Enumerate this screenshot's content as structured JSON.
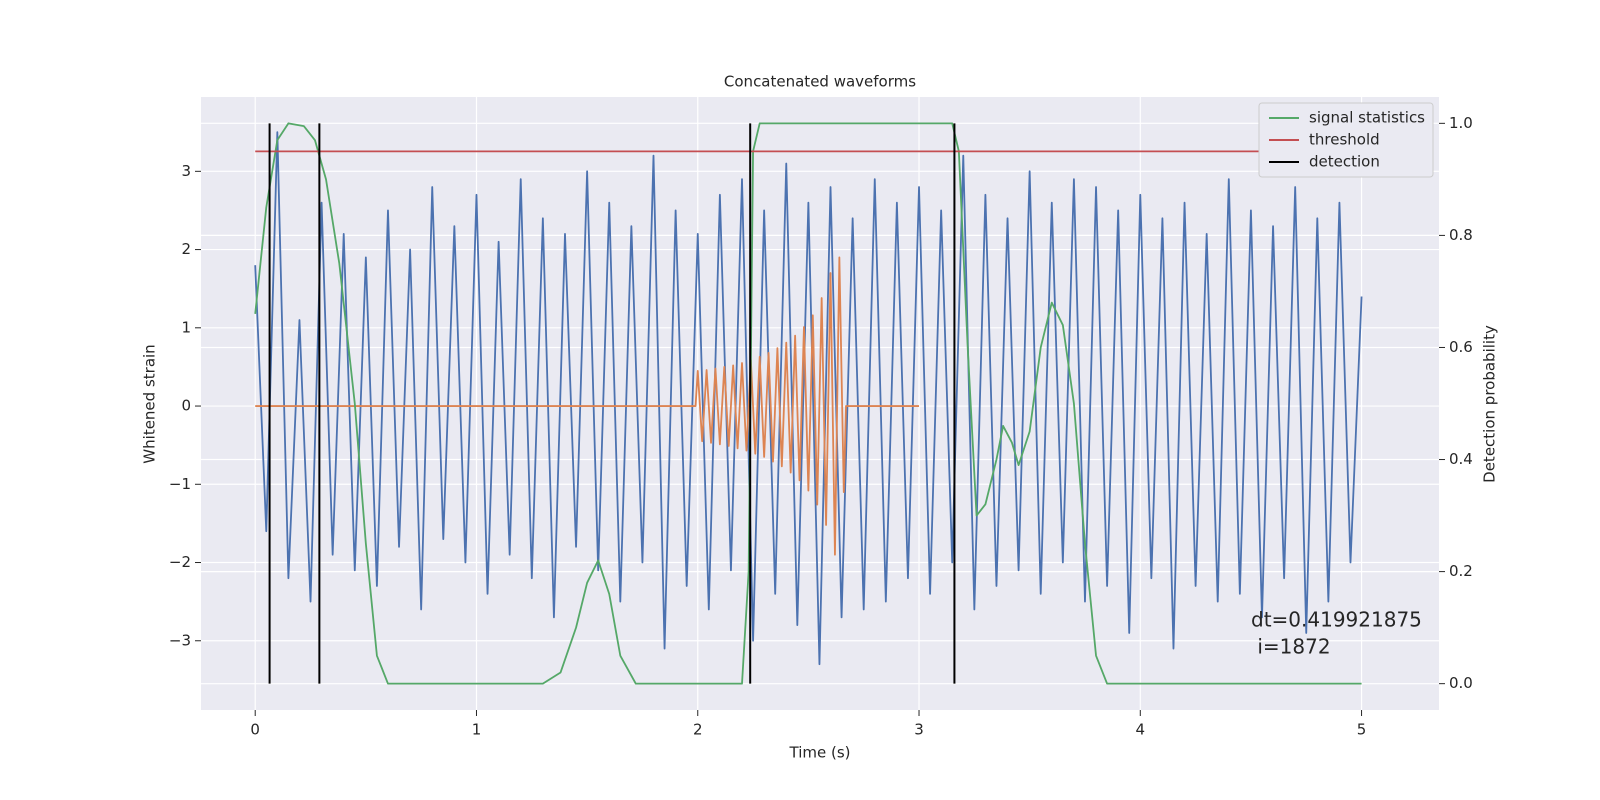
{
  "chart_data": {
    "type": "line",
    "title": "Concatenated waveforms",
    "xlabel": "Time (s)",
    "ylabel": "Whitened strain",
    "y2label": "Detection probability",
    "xlim": [
      -0.245,
      5.35
    ],
    "ylim": [
      -3.885,
      3.95
    ],
    "y2lim": [
      -0.047,
      1.047
    ],
    "xticks": [
      0,
      1,
      2,
      3,
      4,
      5
    ],
    "yticks": [
      {
        "value": -3,
        "label": "−3"
      },
      {
        "value": -2,
        "label": "−2"
      },
      {
        "value": -1,
        "label": "−1"
      },
      0,
      1,
      2,
      3
    ],
    "y2ticks": [
      {
        "value": 0,
        "label": "0.0"
      },
      0.2,
      0.4,
      0.6,
      0.8,
      {
        "value": 1,
        "label": "1.0"
      }
    ],
    "grid": true,
    "legend": "upper right",
    "background": "#eaeaf2",
    "annotation": [
      "dt=0.419921875",
      " i=1872"
    ],
    "series": [
      {
        "color": "#4c72b0",
        "x": [
          0,
          0.05,
          0.1,
          0.15,
          0.2,
          0.25,
          0.3,
          0.35,
          0.4,
          0.45,
          0.5,
          0.55,
          0.6,
          0.65,
          0.7,
          0.75,
          0.8,
          0.85,
          0.9,
          0.95,
          1,
          1.05,
          1.1,
          1.15,
          1.2,
          1.25,
          1.3,
          1.35,
          1.4,
          1.45,
          1.5,
          1.55,
          1.6,
          1.65,
          1.7,
          1.75,
          1.8,
          1.85,
          1.9,
          1.95,
          2,
          2.05,
          2.1,
          2.15,
          2.2,
          2.25,
          2.3,
          2.35,
          2.4,
          2.45,
          2.5,
          2.55,
          2.6,
          2.65,
          2.7,
          2.75,
          2.8,
          2.85,
          2.9,
          2.95,
          3,
          3.05,
          3.1,
          3.15,
          3.2,
          3.25,
          3.3,
          3.35,
          3.4,
          3.45,
          3.5,
          3.55,
          3.6,
          3.65,
          3.7,
          3.75,
          3.8,
          3.85,
          3.9,
          3.95,
          4,
          4.05,
          4.1,
          4.15,
          4.2,
          4.25,
          4.3,
          4.35,
          4.4,
          4.45,
          4.5,
          4.55,
          4.6,
          4.65,
          4.7,
          4.75,
          4.8,
          4.85,
          4.9,
          4.95,
          5
        ],
        "values": [
          1.8,
          -1.6,
          3.5,
          -2.2,
          1.1,
          -2.5,
          2.6,
          -1.9,
          2.2,
          -2.1,
          1.9,
          -2.3,
          2.5,
          -1.8,
          2.0,
          -2.6,
          2.8,
          -1.7,
          2.3,
          -2.0,
          2.7,
          -2.4,
          2.1,
          -1.9,
          2.9,
          -2.2,
          2.4,
          -2.7,
          2.2,
          -1.8,
          3.0,
          -2.1,
          2.6,
          -2.5,
          2.3,
          -2.0,
          3.2,
          -3.1,
          2.5,
          -2.3,
          2.2,
          -2.6,
          2.7,
          -2.1,
          2.9,
          -3.0,
          2.5,
          -2.4,
          3.1,
          -2.8,
          2.6,
          -3.3,
          2.8,
          -2.7,
          2.4,
          -2.6,
          2.9,
          -2.5,
          2.6,
          -2.2,
          2.8,
          -2.4,
          2.5,
          -2.0,
          3.2,
          -2.6,
          2.7,
          -2.3,
          2.4,
          -2.1,
          3.0,
          -2.4,
          2.6,
          -2.0,
          2.9,
          -2.5,
          2.8,
          -2.3,
          2.5,
          -2.9,
          2.7,
          -2.2,
          2.4,
          -3.1,
          2.6,
          -2.3,
          2.2,
          -2.5,
          2.9,
          -2.4,
          2.5,
          -2.7,
          2.3,
          -2.2,
          2.8,
          -2.9,
          2.4,
          -2.5,
          2.6,
          -2.0,
          1.4
        ]
      },
      {
        "color": "#dd8452",
        "x": [
          0,
          1.99,
          2.0,
          2.02,
          2.04,
          2.06,
          2.08,
          2.1,
          2.12,
          2.14,
          2.16,
          2.18,
          2.2,
          2.22,
          2.24,
          2.26,
          2.28,
          2.3,
          2.32,
          2.34,
          2.36,
          2.38,
          2.4,
          2.42,
          2.44,
          2.46,
          2.48,
          2.5,
          2.52,
          2.54,
          2.56,
          2.58,
          2.6,
          2.62,
          2.64,
          2.66,
          2.67,
          3.0
        ],
        "values": [
          0,
          0,
          0.45,
          -0.45,
          0.46,
          -0.47,
          0.48,
          -0.49,
          0.5,
          -0.51,
          0.52,
          -0.54,
          0.55,
          -0.57,
          0.59,
          -0.61,
          0.63,
          -0.65,
          0.68,
          -0.71,
          0.74,
          -0.77,
          0.81,
          -0.85,
          0.9,
          -0.95,
          1.01,
          -1.08,
          1.16,
          -1.26,
          1.38,
          -1.52,
          1.7,
          -1.9,
          1.9,
          -1.1,
          0,
          0
        ]
      },
      {
        "name": "signal statistics",
        "color": "#55a868",
        "axis": "y2",
        "x": [
          0,
          0.05,
          0.1,
          0.15,
          0.22,
          0.27,
          0.32,
          0.38,
          0.45,
          0.5,
          0.55,
          0.6,
          1.3,
          1.38,
          1.45,
          1.5,
          1.55,
          1.6,
          1.65,
          1.72,
          2.2,
          2.23,
          2.25,
          2.28,
          3.15,
          3.18,
          3.22,
          3.26,
          3.3,
          3.35,
          3.38,
          3.42,
          3.45,
          3.5,
          3.55,
          3.6,
          3.65,
          3.7,
          3.75,
          3.8,
          3.85,
          5.0
        ],
        "values": [
          0.66,
          0.85,
          0.97,
          1.0,
          0.995,
          0.97,
          0.9,
          0.75,
          0.5,
          0.25,
          0.05,
          0.0,
          0.0,
          0.02,
          0.1,
          0.18,
          0.22,
          0.16,
          0.05,
          0.0,
          0.0,
          0.2,
          0.95,
          1.0,
          1.0,
          0.95,
          0.6,
          0.3,
          0.32,
          0.4,
          0.46,
          0.43,
          0.39,
          0.45,
          0.6,
          0.68,
          0.64,
          0.5,
          0.25,
          0.05,
          0.0,
          0.0
        ]
      },
      {
        "name": "threshold",
        "color": "#c44e52",
        "axis": "y2",
        "x": [
          0,
          5.1
        ],
        "values": [
          0.95,
          0.95
        ]
      },
      {
        "name": "detection",
        "color": "#000000",
        "axis": "y2",
        "kind": "vline",
        "x": [
          0.065,
          0.29,
          2.237,
          3.16
        ],
        "values": [
          1,
          1,
          1,
          1
        ]
      }
    ]
  }
}
